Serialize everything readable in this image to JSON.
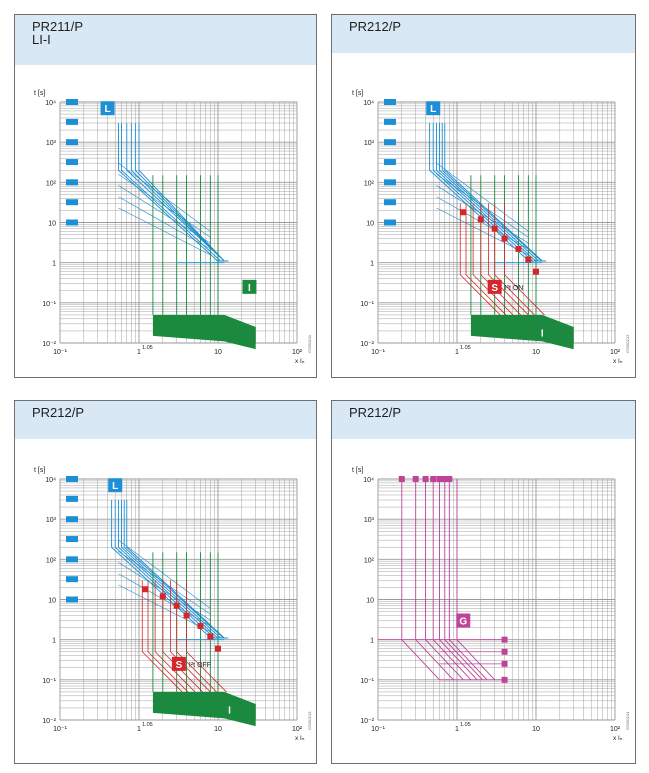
{
  "panels": [
    {
      "title": "PR211/P",
      "subtitle": "LI-I",
      "y_label": "t [s]",
      "y_ticks": [
        "10⁴",
        "10³",
        "10²",
        "10",
        "1",
        "10⁻¹",
        "10⁻²"
      ],
      "x_ticks": [
        "10⁻¹",
        "1",
        "1.05",
        "10",
        "10²"
      ],
      "x_label": "x Iₙ",
      "badges": [
        {
          "text": "L",
          "color": "#1e8fd6"
        },
        {
          "text": "I",
          "color": "#1b8a3e"
        }
      ],
      "caption": "",
      "figure_code": "GSIS0211"
    },
    {
      "title": "PR212/P",
      "subtitle": "",
      "y_label": "t [s]",
      "y_ticks": [
        "10⁴",
        "10³",
        "10²",
        "10",
        "1",
        "10⁻¹",
        "10⁻²"
      ],
      "x_ticks": [
        "10⁻¹",
        "1",
        "1.05",
        "10",
        "10²"
      ],
      "x_label": "x Iₙ",
      "badges": [
        {
          "text": "L",
          "color": "#1e8fd6"
        },
        {
          "text": "S",
          "color": "#d6262a"
        },
        {
          "text": "I",
          "color": "#1b8a3e"
        }
      ],
      "caption": "I²t ON",
      "figure_code": "GSIS0212"
    },
    {
      "title": "PR212/P",
      "subtitle": "",
      "y_label": "t [s]",
      "y_ticks": [
        "10⁴",
        "10³",
        "10²",
        "10",
        "1",
        "10⁻¹",
        "10⁻²"
      ],
      "x_ticks": [
        "10⁻¹",
        "1",
        "1.05",
        "10",
        "10²"
      ],
      "x_label": "x Iₙ",
      "badges": [
        {
          "text": "L",
          "color": "#1e8fd6"
        },
        {
          "text": "S",
          "color": "#d6262a"
        },
        {
          "text": "I",
          "color": "#1b8a3e"
        }
      ],
      "caption": "I²t OFF",
      "figure_code": "GSIS0213"
    },
    {
      "title": "PR212/P",
      "subtitle": "",
      "y_label": "t [s]",
      "y_ticks": [
        "10⁴",
        "10³",
        "10²",
        "10",
        "1",
        "10⁻¹",
        "10⁻²"
      ],
      "x_ticks": [
        "10⁻¹",
        "1",
        "1.05",
        "10",
        "10²"
      ],
      "x_label": "x Iₙ",
      "badges": [
        {
          "text": "G",
          "color": "#c0439a"
        }
      ],
      "caption": "",
      "figure_code": "GSIS0214"
    }
  ],
  "colors": {
    "l": "#1e8fd6",
    "s": "#d6262a",
    "i": "#1b8a3e",
    "g": "#c0439a",
    "grid": "#9a9a9a",
    "header": "#d8e9f5"
  }
}
